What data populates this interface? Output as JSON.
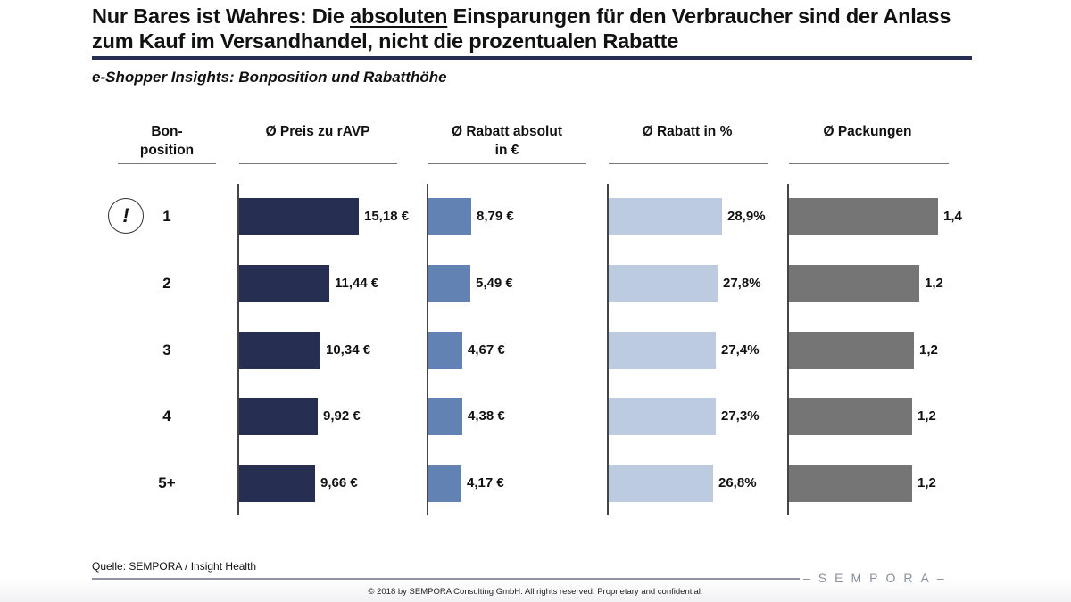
{
  "title": {
    "part1": "Nur Bares ist Wahres: Die ",
    "underlined": "absoluten",
    "part2": " Einsparungen für den Verbraucher sind der Anlass zum Kauf im Versandhandel, nicht die prozentualen Rabatte"
  },
  "subtitle": "e-Shopper Insights: Bonposition und Rabatthöhe",
  "row_header": {
    "line1": "Bon-",
    "line2": "position"
  },
  "highlight_icon": {
    "name": "exclamation-circle-icon",
    "glyph": "!"
  },
  "footer": {
    "source": "Quelle: SEMPORA / Insight Health",
    "logo": "SEMPORA",
    "copyright": "© 2018 by SEMPORA Consulting GmbH. All rights reserved. Proprietary and confidential."
  },
  "colors": {
    "title_rule": "#262f52",
    "preis": "#262f52",
    "rabatt_abs": "#6282b3",
    "rabatt_pct": "#bccbdf",
    "packungen": "#757575"
  },
  "chart_data": {
    "type": "bar",
    "orientation": "horizontal",
    "title": "e-Shopper Insights: Bonposition und Rabatthöhe",
    "categories": [
      "1",
      "2",
      "3",
      "4",
      "5+"
    ],
    "highlighted_category": "1",
    "series": [
      {
        "name": "Ø Preis zu rAVP",
        "header_line1": "Ø Preis zu rAVP",
        "header_line2": "",
        "values": [
          15.18,
          11.44,
          10.34,
          9.92,
          9.66
        ],
        "labels": [
          "15,18 €",
          "11,44 €",
          "10,34 €",
          "9,92 €",
          "9,66 €"
        ]
      },
      {
        "name": "Ø Rabatt absolut in €",
        "header_line1": "Ø Rabatt absolut",
        "header_line2": "in €",
        "values": [
          8.79,
          5.49,
          4.67,
          4.38,
          4.17
        ],
        "labels": [
          "8,79 €",
          "5,49 €",
          "4,67 €",
          "4,38 €",
          "4,17 €"
        ]
      },
      {
        "name": "Ø Rabatt in %",
        "header_line1": "Ø Rabatt in %",
        "header_line2": "",
        "values": [
          28.9,
          27.8,
          27.4,
          27.3,
          26.8
        ],
        "labels": [
          "28,9%",
          "27,8%",
          "27,4%",
          "27,3%",
          "26,8%"
        ]
      },
      {
        "name": "Ø Packungen",
        "header_line1": "Ø Packungen",
        "header_line2": "",
        "values": [
          1.4,
          1.2,
          1.2,
          1.2,
          1.2
        ],
        "labels": [
          "1,4",
          "1,2",
          "1,2",
          "1,2",
          "1,2"
        ]
      }
    ],
    "grid": false,
    "legend": "none"
  }
}
